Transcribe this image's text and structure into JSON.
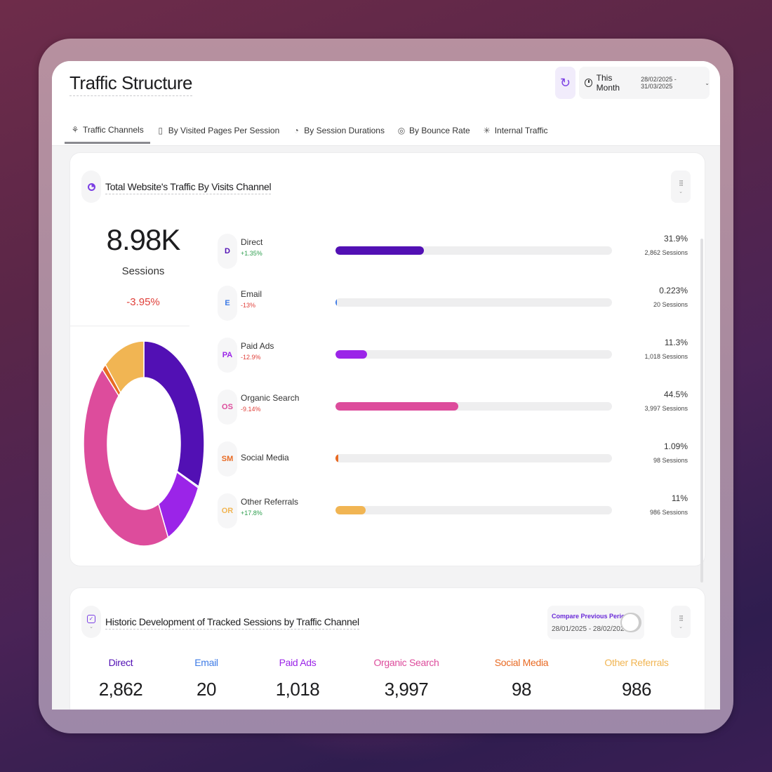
{
  "header": {
    "title": "Traffic Structure",
    "refresh_icon": "refresh-icon",
    "date_filter": {
      "label": "This Month",
      "range": "28/02/2025 - 31/03/2025",
      "icon": "clock-icon"
    }
  },
  "tabs": [
    {
      "label": "Traffic Channels",
      "icon": "channels-icon",
      "glyph": "⚘",
      "active": true
    },
    {
      "label": "By Visited Pages Per Session",
      "icon": "pages-icon",
      "glyph": "▯",
      "active": false
    },
    {
      "label": "By Session Durations",
      "icon": "timer-icon",
      "glyph": "◔",
      "active": false
    },
    {
      "label": "By Bounce Rate",
      "icon": "bounce-icon",
      "glyph": "◎",
      "active": false
    },
    {
      "label": "Internal Traffic",
      "icon": "internal-icon",
      "glyph": "✳",
      "active": false
    }
  ],
  "traffic_card": {
    "title": "Total Website's Traffic By Visits Channel",
    "total": {
      "value": "8.98K",
      "label": "Sessions",
      "change": "-3.95%"
    },
    "channels": [
      {
        "abbr": "D",
        "name": "Direct",
        "change": "+1.35%",
        "trend": "pos",
        "pct": "31.9%",
        "share": 31.9,
        "sessions": "2,862 Sessions",
        "color": "#5210b4"
      },
      {
        "abbr": "E",
        "name": "Email",
        "change": "-13%",
        "trend": "neg",
        "pct": "0.223%",
        "share": 0.223,
        "sessions": "20 Sessions",
        "color": "#3e7be6"
      },
      {
        "abbr": "PA",
        "name": "Paid Ads",
        "change": "-12.9%",
        "trend": "neg",
        "pct": "11.3%",
        "share": 11.3,
        "sessions": "1,018 Sessions",
        "color": "#9b24e8"
      },
      {
        "abbr": "OS",
        "name": "Organic Search",
        "change": "-9.14%",
        "trend": "neg",
        "pct": "44.5%",
        "share": 44.5,
        "sessions": "3,997 Sessions",
        "color": "#dd4c9c"
      },
      {
        "abbr": "SM",
        "name": "Social Media",
        "change": "",
        "trend": "",
        "pct": "1.09%",
        "share": 1.09,
        "sessions": "98 Sessions",
        "color": "#e86a23"
      },
      {
        "abbr": "OR",
        "name": "Other Referrals",
        "change": "+17.8%",
        "trend": "pos",
        "pct": "11%",
        "share": 11,
        "sessions": "986 Sessions",
        "color": "#f1b553"
      }
    ]
  },
  "history_card": {
    "title": "Historic Development of Tracked Sessions by Traffic Channel",
    "compare": {
      "label": "Compare Previous Period",
      "range": "28/01/2025 - 28/02/2025",
      "enabled": false
    },
    "summary": [
      {
        "name": "Direct",
        "value": "2,862",
        "color": "#5210b4"
      },
      {
        "name": "Email",
        "value": "20",
        "color": "#3e7be6"
      },
      {
        "name": "Paid Ads",
        "value": "1,018",
        "color": "#9b24e8"
      },
      {
        "name": "Organic Search",
        "value": "3,997",
        "color": "#dd4c9c"
      },
      {
        "name": "Social Media",
        "value": "98",
        "color": "#e86a23"
      },
      {
        "name": "Other Referrals",
        "value": "986",
        "color": "#f1b553"
      }
    ]
  }
}
